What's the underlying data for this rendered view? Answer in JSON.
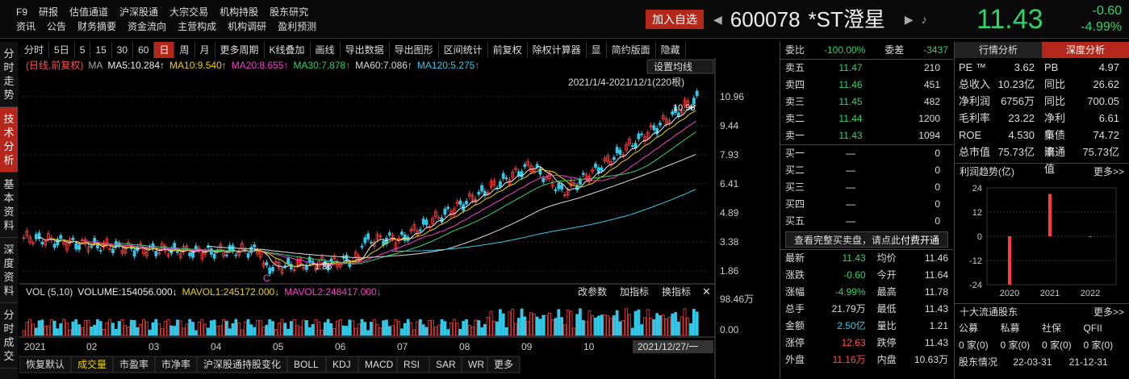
{
  "nav": {
    "row1": [
      "F9",
      "研报",
      "估值通道",
      "沪深股通",
      "大宗交易",
      "机构持股",
      "股东研究"
    ],
    "row2": [
      "资讯",
      "公告",
      "财务摘要",
      "资金流向",
      "主营构成",
      "机构调研",
      "盈利预测"
    ]
  },
  "header": {
    "add_btn": "加入自选",
    "code": "600078",
    "name": "*ST澄星",
    "price": "11.43",
    "change": "-0.60",
    "pct": "-4.99%"
  },
  "left_tabs": [
    "分时走势",
    "技术分析",
    "基本资料",
    "深度资料",
    "分时成交"
  ],
  "toolbar": [
    "分时",
    "5日",
    "5",
    "15",
    "30",
    "60",
    "日",
    "周",
    "月",
    "更多周期",
    "K线叠加",
    "画线",
    "导出数据",
    "导出图形",
    "区间统计",
    "前复权",
    "除权计算器",
    "显",
    "简约版面",
    "隐藏"
  ],
  "chart": {
    "ma_label": "(日线,前复权)",
    "ma": "MA",
    "ma5": "MA5:10.284↑",
    "ma10": "MA10:9.540↑",
    "ma20": "MA20:8.655↑",
    "ma30": "MA30:7.878↑",
    "ma60": "MA60:7.086↑",
    "ma120": "MA120:5.275↑",
    "setting": "设置均线",
    "range": "2021/1/4-2021/12/1(220根)",
    "high_label": "10.96",
    "low_label": "1.86",
    "c_marker": "C",
    "yticks": [
      "10.96",
      "9.44",
      "7.93",
      "6.41",
      "4.89",
      "3.38",
      "1.86"
    ],
    "vol_label": "VOL (5,10)",
    "volume": "VOLUME:154056.000↓",
    "mavol1": "MAVOL1:245172.000↓",
    "mavol2": "MAVOL2:248417.000↓",
    "vol_btns": [
      "改参数",
      "加指标",
      "换指标"
    ],
    "vol_ticks": [
      "98.46万",
      "0.00"
    ],
    "xticks": [
      "2021",
      "02",
      "03",
      "04",
      "05",
      "06",
      "07",
      "08",
      "09",
      "10"
    ],
    "cursor_date": "2021/12/27/一"
  },
  "bottom_tabs": [
    "恢复默认",
    "成交量",
    "市盈率",
    "市净率",
    "沪深股通持股变化",
    "BOLL",
    "KDJ",
    "MACD",
    "RSI",
    "SAR",
    "WR",
    "更多"
  ],
  "orderbook": {
    "weibi_label": "委比",
    "weibi": "-100.00%",
    "weicha_label": "委差",
    "weicha": "-3437",
    "asks": [
      [
        "卖五",
        "11.47",
        "210"
      ],
      [
        "卖四",
        "11.46",
        "451"
      ],
      [
        "卖三",
        "11.45",
        "482"
      ],
      [
        "卖二",
        "11.44",
        "1200"
      ],
      [
        "卖一",
        "11.43",
        "1094"
      ]
    ],
    "bids": [
      [
        "买一",
        "—",
        "0"
      ],
      [
        "买二",
        "—",
        "0"
      ],
      [
        "买三",
        "—",
        "0"
      ],
      [
        "买四",
        "—",
        "0"
      ],
      [
        "买五",
        "—",
        "0"
      ]
    ],
    "fullbook": "查看完整买卖盘，请点此",
    "pay": "付费开通",
    "stats": [
      [
        "最新",
        "11.43",
        "均价",
        "11.46"
      ],
      [
        "涨跌",
        "-0.60",
        "今开",
        "11.64"
      ],
      [
        "涨幅",
        "-4.99%",
        "最高",
        "11.78"
      ],
      [
        "总手",
        "21.79万",
        "最低",
        "11.43"
      ],
      [
        "金额",
        "2.50亿",
        "量比",
        "1.21"
      ],
      [
        "涨停",
        "12.63",
        "跌停",
        "11.43"
      ],
      [
        "外盘",
        "11.16万",
        "内盘",
        "10.63万"
      ]
    ]
  },
  "fundamentals": {
    "tabs": [
      "行情分析",
      "深度分析"
    ],
    "rows": [
      [
        "PE ™",
        "3.62",
        "PB",
        "4.97"
      ],
      [
        "总收入",
        "10.23亿",
        "同比",
        "26.62"
      ],
      [
        "净利润",
        "6756万",
        "同比",
        "700.05"
      ],
      [
        "毛利率",
        "23.22",
        "净利率",
        "6.61"
      ],
      [
        "ROE",
        "4.530",
        "负债率",
        "74.72"
      ],
      [
        "总市值",
        "75.73亿",
        "流通值",
        "75.73亿"
      ]
    ],
    "profit_title": "利润趋势(亿)",
    "more": "更多>>",
    "profit_ticks": [
      "24",
      "12",
      "0",
      "-12",
      "-24"
    ],
    "profit_years": [
      "2020",
      "2021",
      "2022"
    ],
    "holders_title": "十大流通股东",
    "holder_cols": [
      "公募",
      "私募",
      "社保",
      "QFII"
    ],
    "holder_vals": [
      "0 家(0)",
      "0 家(0)",
      "0 家(0)",
      "0 家(0)"
    ],
    "holder_info": [
      "股东情况",
      "22-03-31",
      "21-12-31"
    ]
  },
  "chart_data": {
    "type": "bar",
    "categories": [
      "2020",
      "2021",
      "2022"
    ],
    "values": [
      -24,
      21,
      0
    ],
    "title": "利润趋势(亿)",
    "ylim": [
      -24,
      24
    ]
  }
}
